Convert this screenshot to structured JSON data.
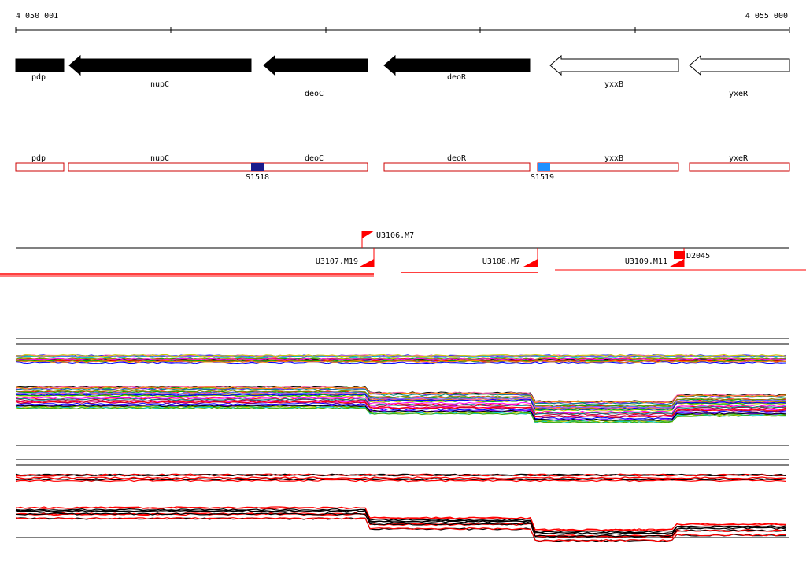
{
  "ruler": {
    "start_label": "4 050 001",
    "end_label": "4 055 000"
  },
  "genes": [
    {
      "name": "pdp",
      "strand": "plus",
      "filled": true
    },
    {
      "name": "nupC",
      "strand": "minus",
      "filled": true
    },
    {
      "name": "deoC",
      "strand": "minus",
      "filled": true
    },
    {
      "name": "deoR",
      "strand": "minus",
      "filled": true
    },
    {
      "name": "yxxB",
      "strand": "minus",
      "filled": false
    },
    {
      "name": "yxeR",
      "strand": "minus",
      "filled": false
    }
  ],
  "segments": [
    {
      "name": "pdp"
    },
    {
      "name": "nupC"
    },
    {
      "name": "deoC"
    },
    {
      "name": "deoR"
    },
    {
      "name": "yxxB"
    },
    {
      "name": "yxeR"
    }
  ],
  "sites": [
    {
      "name": "S1518",
      "color": "#1a1a8c"
    },
    {
      "name": "S1519",
      "color": "#1e90ff"
    }
  ],
  "transcripts": {
    "up_units": [
      {
        "name": "U3106.M7"
      }
    ],
    "down_units": [
      {
        "name": "U3107.M19"
      },
      {
        "name": "U3108.M7"
      },
      {
        "name": "U3109.M11"
      }
    ],
    "other": [
      {
        "name": "D2045"
      }
    ],
    "color": "#ff0000"
  },
  "colors": {
    "gene_fill": "#000000",
    "segment_border": "#cc0000",
    "tracks_accent": "#ff0000"
  }
}
